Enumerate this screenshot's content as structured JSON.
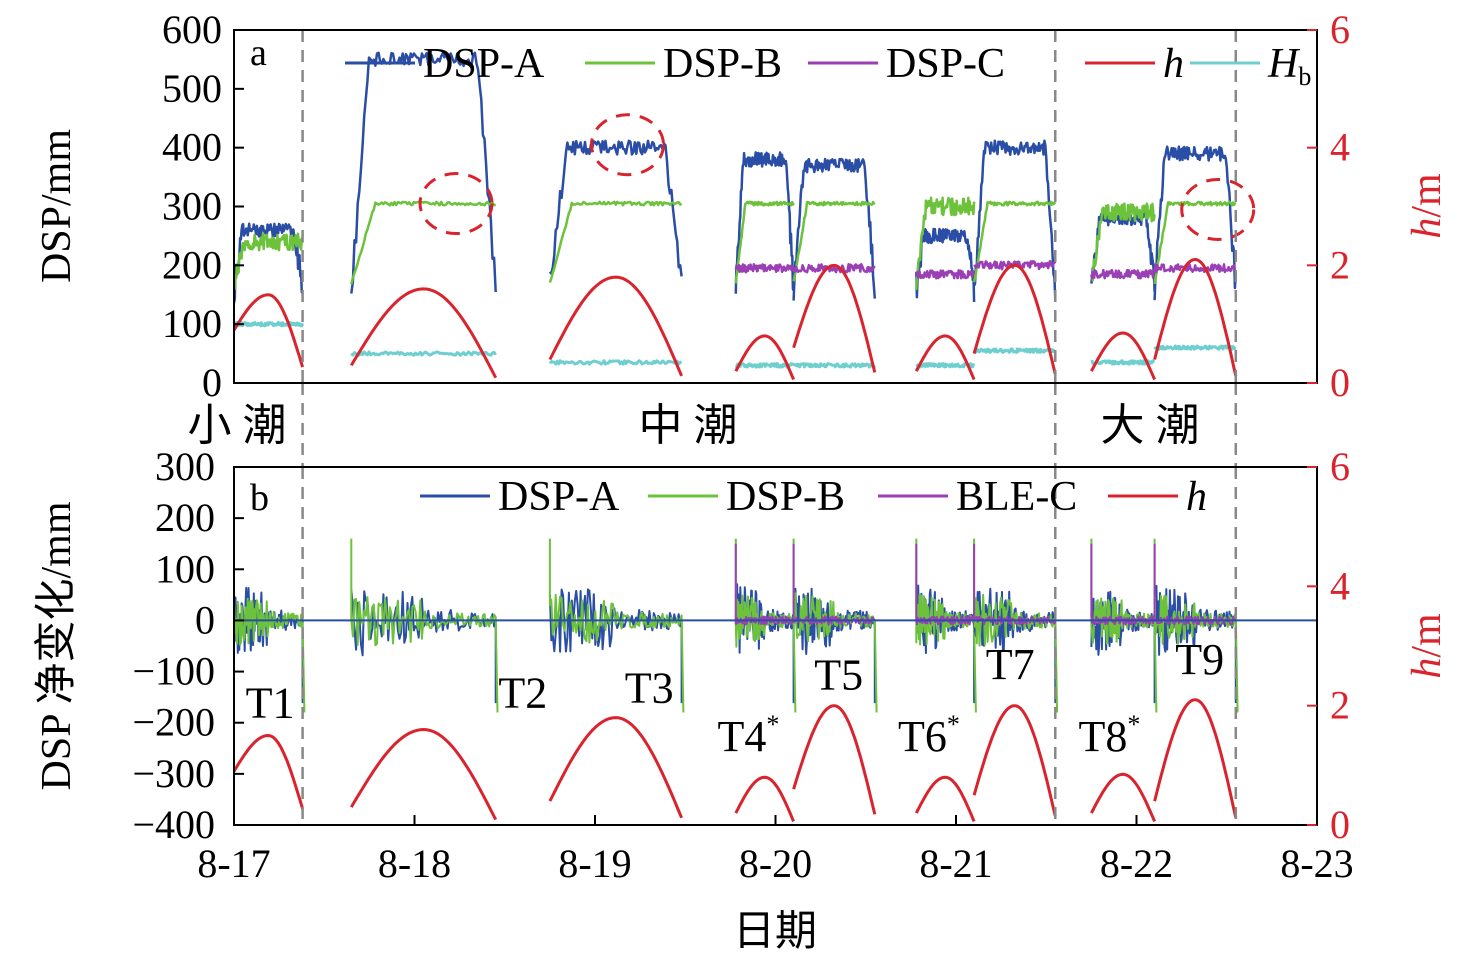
{
  "colors": {
    "dspA": "#2a4ea6",
    "dspB": "#6cc23a",
    "dspC": "#9b3fb5",
    "h": "#d9232d",
    "Hb": "#6fcfcf",
    "axis": "#000000",
    "right_axis": "#d9232d",
    "divider": "#888888"
  },
  "chart_data": [
    {
      "panel": "a",
      "type": "line",
      "ylabel": "DSP/mm",
      "ylim": [
        0,
        600
      ],
      "yticks": [
        "0",
        "100",
        "200",
        "300",
        "400",
        "500",
        "600"
      ],
      "ylabel_right": "h/m",
      "ylim_right": [
        0,
        6
      ],
      "yticks_right": [
        "0",
        "2",
        "4",
        "6"
      ],
      "legend": [
        "DSP-A",
        "DSP-B",
        "DSP-C",
        "h",
        "Hb"
      ],
      "tide_classes": [
        "小 潮",
        "中 潮",
        "大 潮"
      ],
      "tidal_cycles": [
        {
          "id": "T1",
          "start": 17.0,
          "end": 17.38,
          "dspA": 260,
          "dspB": 240,
          "dspC": null,
          "h_peak": 1.5,
          "h_start": 0.9,
          "Hb": 1.0
        },
        {
          "id": "T2",
          "start": 17.65,
          "end": 18.45,
          "dspA": 550,
          "dspB": 305,
          "dspC": null,
          "h_peak": 1.6,
          "h_start": 0.3,
          "Hb": 0.5
        },
        {
          "id": "T3",
          "start": 18.75,
          "end": 19.48,
          "dspA": 400,
          "dspB": 305,
          "dspC": null,
          "h_peak": 1.8,
          "h_start": 0.4,
          "Hb": 0.35
        },
        {
          "id": "T4*",
          "start": 19.78,
          "end": 20.1,
          "dspA": 380,
          "dspB": 305,
          "dspC": 195,
          "h_peak": 0.8,
          "h_start": 0.2,
          "Hb": 0.3
        },
        {
          "id": "T5",
          "start": 20.1,
          "end": 20.55,
          "dspA": 370,
          "dspB": 305,
          "dspC": 195,
          "h_peak": 2.0,
          "h_start": 0.6,
          "Hb": 0.3
        },
        {
          "id": "T6*",
          "start": 20.78,
          "end": 21.1,
          "dspA": 250,
          "dspB": 300,
          "dspC": 185,
          "h_peak": 0.8,
          "h_start": 0.2,
          "Hb": 0.3
        },
        {
          "id": "T7",
          "start": 21.1,
          "end": 21.55,
          "dspA": 400,
          "dspB": 305,
          "dspC": 200,
          "h_peak": 2.0,
          "h_start": 0.5,
          "Hb": 0.55
        },
        {
          "id": "T8*",
          "start": 21.75,
          "end": 22.1,
          "dspA": 280,
          "dspB": 290,
          "dspC": 185,
          "h_peak": 0.85,
          "h_start": 0.2,
          "Hb": 0.35
        },
        {
          "id": "T9",
          "start": 22.1,
          "end": 22.55,
          "dspA": 390,
          "dspB": 305,
          "dspC": 195,
          "h_peak": 2.1,
          "h_start": 0.4,
          "Hb": 0.6
        }
      ],
      "highlight_circles": [
        {
          "x": 18.23,
          "y": 305
        },
        {
          "x": 19.18,
          "y": 405
        },
        {
          "x": 22.45,
          "y": 295
        }
      ]
    },
    {
      "panel": "b",
      "type": "line",
      "ylabel": "DSP 净变化/mm",
      "ylim": [
        -400,
        300
      ],
      "yticks": [
        "300",
        "200",
        "100",
        "0",
        "−100",
        "−200",
        "−300",
        "−400"
      ],
      "ylabel_right": "h/m",
      "ylim_right": [
        0,
        6
      ],
      "yticks_right": [
        "0",
        "2",
        "4",
        "6"
      ],
      "legend": [
        "DSP-A",
        "DSP-B",
        "BLE-C",
        "h"
      ],
      "xlabel": "日期",
      "xticks": [
        "8-17",
        "8-18",
        "8-19",
        "8-20",
        "8-21",
        "8-22",
        "8-23"
      ],
      "xlim": [
        17,
        23
      ],
      "dividers": [
        17.38,
        21.55,
        22.55
      ],
      "tide_labels": [
        {
          "text": "T1",
          "sup": "",
          "x": 17.2,
          "y": -190
        },
        {
          "text": "T2",
          "sup": "",
          "x": 18.6,
          "y": -170
        },
        {
          "text": "T3",
          "sup": "",
          "x": 19.3,
          "y": -160
        },
        {
          "text": "T4",
          "sup": "*",
          "x": 19.85,
          "y": -255
        },
        {
          "text": "T5",
          "sup": "",
          "x": 20.35,
          "y": -135
        },
        {
          "text": "T6",
          "sup": "*",
          "x": 20.85,
          "y": -255
        },
        {
          "text": "T7",
          "sup": "",
          "x": 21.3,
          "y": -115
        },
        {
          "text": "T8",
          "sup": "*",
          "x": 21.85,
          "y": -255
        },
        {
          "text": "T9",
          "sup": "",
          "x": 22.35,
          "y": -105
        }
      ]
    }
  ]
}
